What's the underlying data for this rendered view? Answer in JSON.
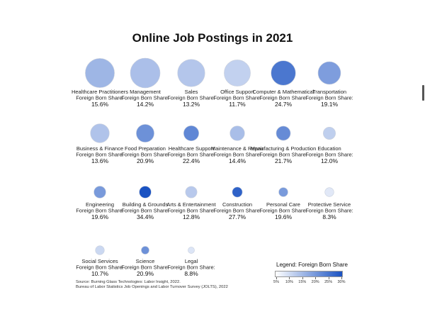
{
  "chart_data": {
    "type": "bubble",
    "title": "Online Job Postings in 2021",
    "value_prefix": "Foreign Born Share:",
    "categories": [
      {
        "name": "Healthcare Practitioners",
        "share": 15.6,
        "share_label": "15.6%",
        "postings": 0.96
      },
      {
        "name": "Management",
        "share": 14.2,
        "share_label": "14.2%",
        "postings": 1.0
      },
      {
        "name": "Sales",
        "share": 13.2,
        "share_label": "13.2%",
        "postings": 0.84
      },
      {
        "name": "Office Support",
        "share": 11.7,
        "share_label": "11.7%",
        "postings": 0.78
      },
      {
        "name": "Computer & Mathematical",
        "share": 24.7,
        "share_label": "24.7%",
        "postings": 0.68
      },
      {
        "name": "Transportation",
        "share": 19.1,
        "share_label": "19.1%",
        "postings": 0.58
      },
      {
        "name": "Business & Finance",
        "share": 13.6,
        "share_label": "13.6%",
        "postings": 0.4
      },
      {
        "name": "Food Preparation",
        "share": 20.9,
        "share_label": "20.9%",
        "postings": 0.36
      },
      {
        "name": "Healthcare Support",
        "share": 22.4,
        "share_label": "22.4%",
        "postings": 0.26
      },
      {
        "name": "Maintenance & Repair",
        "share": 14.4,
        "share_label": "14.4%",
        "postings": 0.24
      },
      {
        "name": "Manufacturing & Production",
        "share": 21.7,
        "share_label": "21.7%",
        "postings": 0.23
      },
      {
        "name": "Education",
        "share": 12.0,
        "share_label": "12.0%",
        "postings": 0.17
      },
      {
        "name": "Engineering",
        "share": 19.6,
        "share_label": "19.6%",
        "postings": 0.16
      },
      {
        "name": "Building & Grounds",
        "share": 34.4,
        "share_label": "34.4%",
        "postings": 0.16
      },
      {
        "name": "Arts & Entertainment",
        "share": 12.8,
        "share_label": "12.8%",
        "postings": 0.15
      },
      {
        "name": "Construction",
        "share": 27.7,
        "share_label": "27.7%",
        "postings": 0.115
      },
      {
        "name": "Personal Care",
        "share": 19.6,
        "share_label": "19.6%",
        "postings": 0.095
      },
      {
        "name": "Protective Service",
        "share": 8.3,
        "share_label": "8.3%",
        "postings": 0.09
      },
      {
        "name": "Social Services",
        "share": 10.7,
        "share_label": "10.7%",
        "postings": 0.09
      },
      {
        "name": "Science",
        "share": 20.9,
        "share_label": "20.9%",
        "postings": 0.07
      },
      {
        "name": "Legal",
        "share": 8.8,
        "share_label": "8.8%",
        "postings": 0.047
      }
    ],
    "legend": {
      "title": "Legend: Foreign Born Share",
      "ticks": [
        "5%",
        "10%",
        "15%",
        "20%",
        "25%",
        "30%"
      ],
      "range": [
        5,
        30
      ],
      "color_low": "#ffffff",
      "color_high": "#1a52c2"
    },
    "source": [
      "Source: Burning Glass Technologies: Labor Insight, 2022.",
      "Bureau of Labor Statistics Job Openings and Labor Turnover Survey (JOLTS), 2022"
    ]
  }
}
